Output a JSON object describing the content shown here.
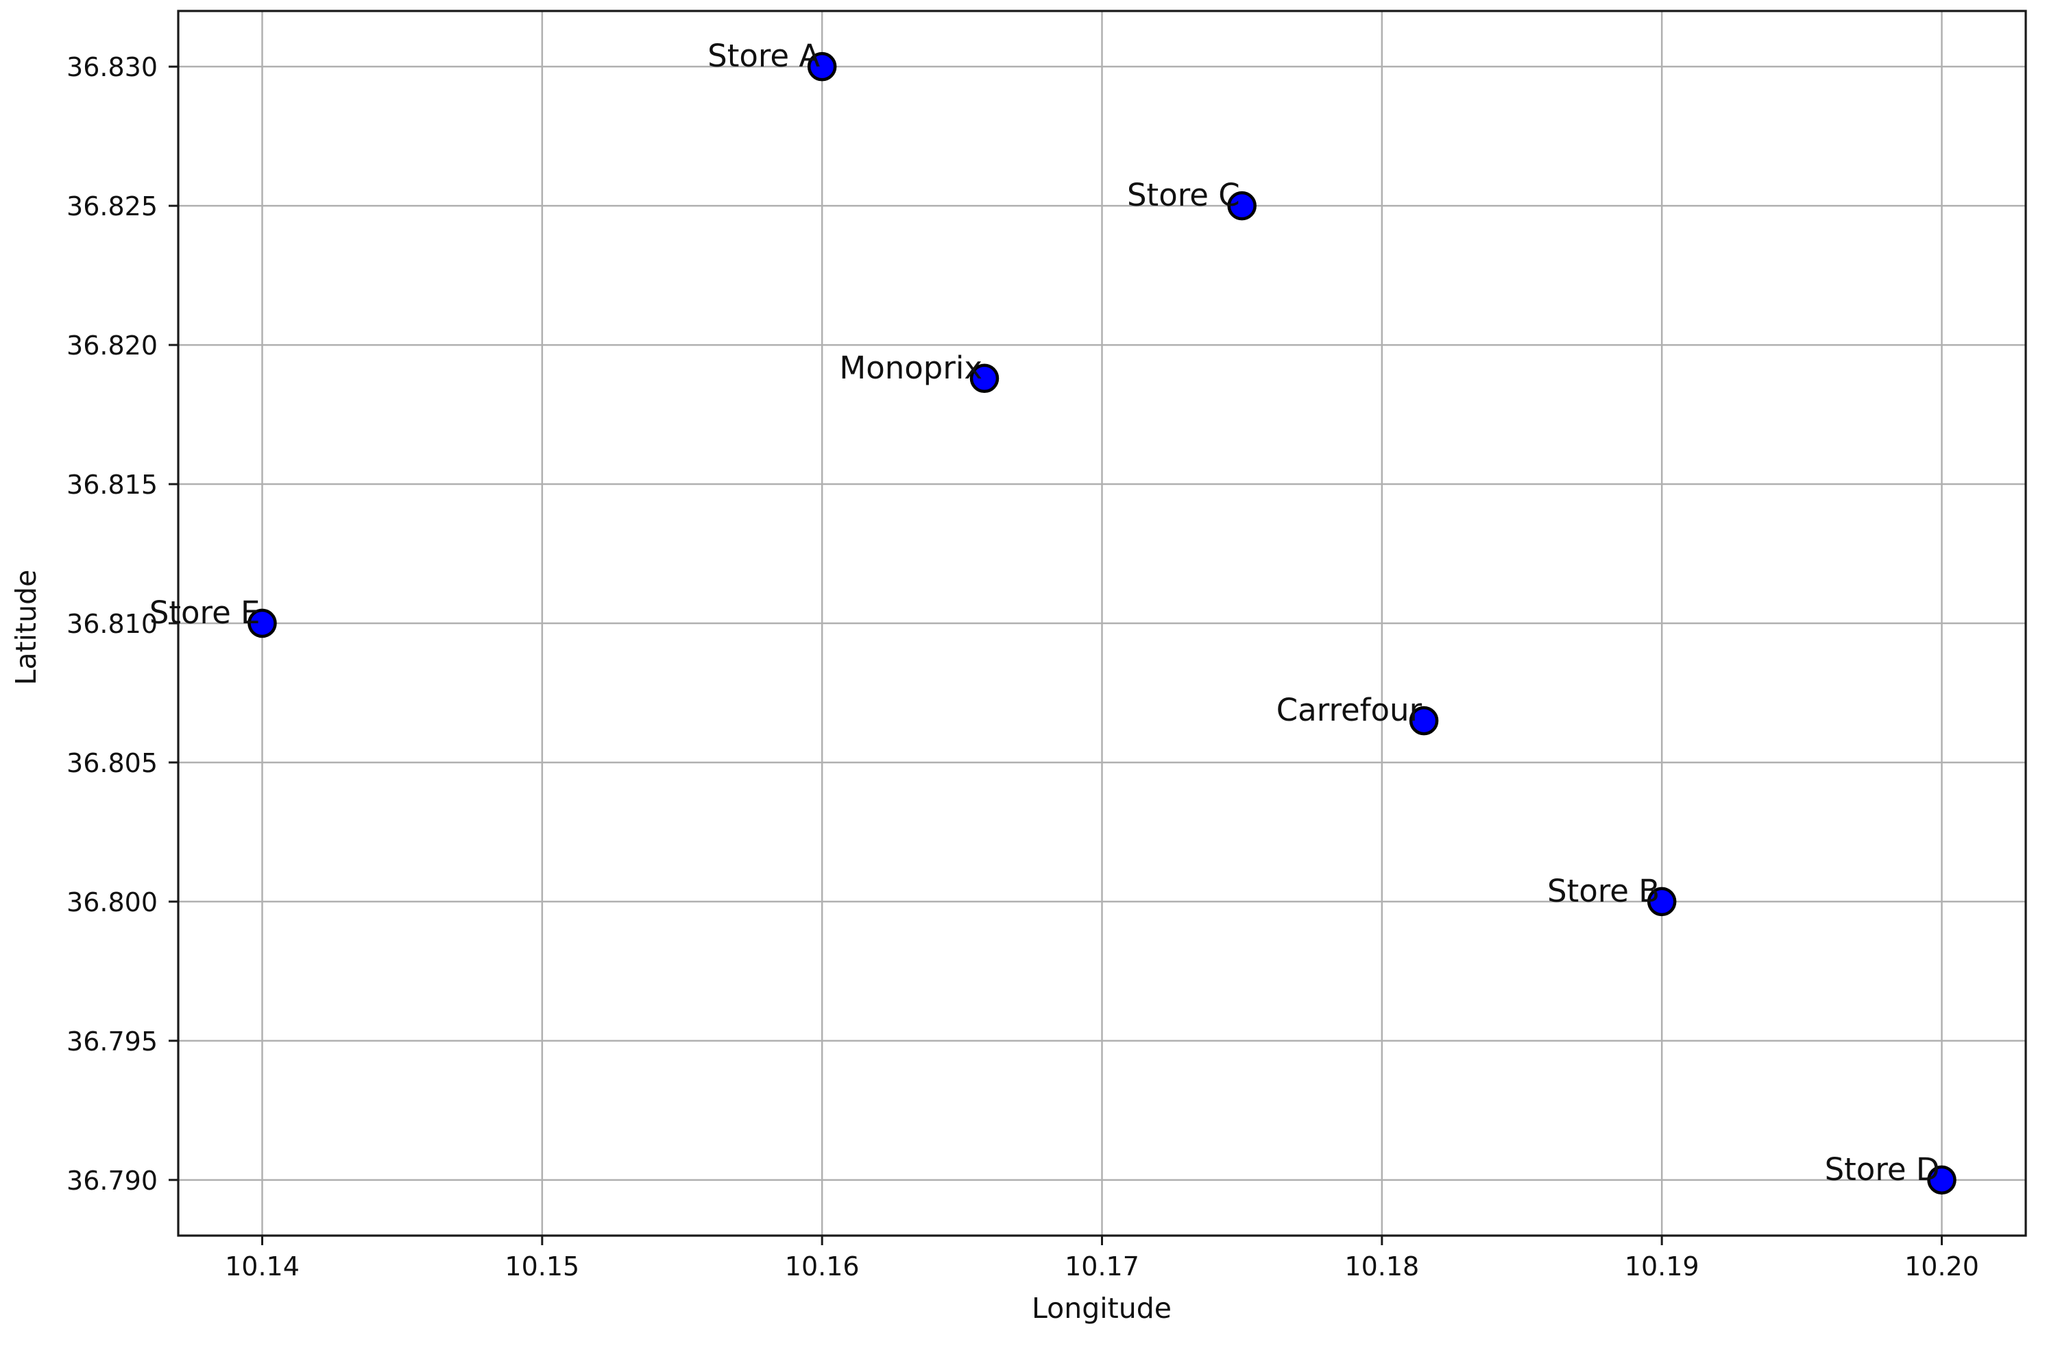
{
  "figure": {
    "background_color": "#ffffff",
    "kind": "matplotlib-scatter-figure"
  },
  "chart_data": {
    "type": "scatter",
    "title": "",
    "xlabel": "Longitude",
    "ylabel": "Latitude",
    "xlim": [
      10.137,
      10.203
    ],
    "ylim": [
      36.788,
      36.832
    ],
    "grid": true,
    "legend_position": "none",
    "xticks": {
      "values": [
        10.14,
        10.15,
        10.16,
        10.17,
        10.18,
        10.19,
        10.2
      ],
      "labels": [
        "10.14",
        "10.15",
        "10.16",
        "10.17",
        "10.18",
        "10.19",
        "10.20"
      ]
    },
    "yticks": {
      "values": [
        36.79,
        36.795,
        36.8,
        36.805,
        36.81,
        36.815,
        36.82,
        36.825,
        36.83
      ],
      "labels": [
        "36.790",
        "36.795",
        "36.800",
        "36.805",
        "36.810",
        "36.815",
        "36.820",
        "36.825",
        "36.830"
      ]
    },
    "points": [
      {
        "label": "Store A",
        "lon": 10.16,
        "lat": 36.83
      },
      {
        "label": "Store C",
        "lon": 10.175,
        "lat": 36.825
      },
      {
        "label": "Monoprix",
        "lon": 10.1658,
        "lat": 36.8188
      },
      {
        "label": "Store E",
        "lon": 10.14,
        "lat": 36.81
      },
      {
        "label": "Carrefour",
        "lon": 10.1815,
        "lat": 36.8065
      },
      {
        "label": "Store B",
        "lon": 10.19,
        "lat": 36.8
      },
      {
        "label": "Store D",
        "lon": 10.2,
        "lat": 36.79
      }
    ],
    "style": {
      "marker_fill": "#0000ff",
      "marker_edge": "#000000",
      "grid_color": "#b0b0b0",
      "spine_color": "#1a1a1a",
      "text_color": "#111111",
      "label_placement": "left-of-point"
    }
  }
}
